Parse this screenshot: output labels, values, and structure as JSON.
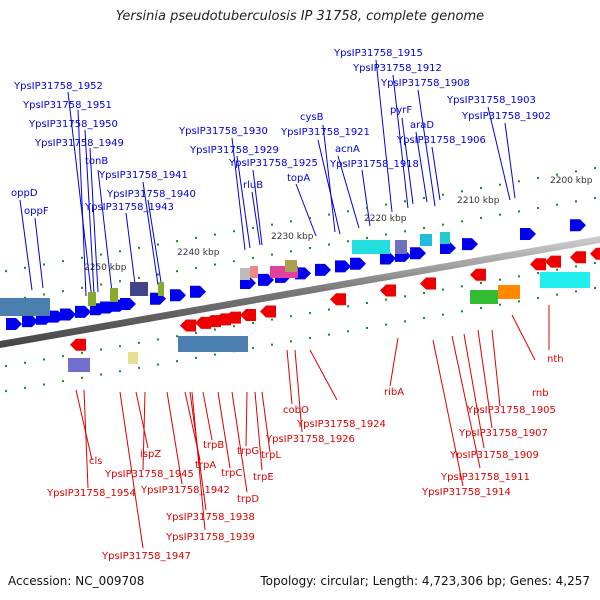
{
  "title": "Yersinia pseudotuberculosis IP 31758, complete genome",
  "footer": {
    "accession": "Accession: NC_009708",
    "summary": "Topology: circular; Length: 4,723,306 bp; Genes: 4,257"
  },
  "colors": {
    "forward_label": "#0000dd",
    "reverse_label": "#dd0000",
    "backbone": "#888888",
    "tick": "#1a8a1a"
  },
  "scale_labels": [
    {
      "text": "2250 kbp",
      "kbp": 2250
    },
    {
      "text": "2240 kbp",
      "kbp": 2240
    },
    {
      "text": "2230 kbp",
      "kbp": 2230
    },
    {
      "text": "2220 kbp",
      "kbp": 2220
    },
    {
      "text": "2210 kbp",
      "kbp": 2210
    },
    {
      "text": "2200 kbp",
      "kbp": 2200
    }
  ],
  "forward_labels": [
    {
      "text": "YpsIP31758_1952"
    },
    {
      "text": "YpsIP31758_1951"
    },
    {
      "text": "YpsIP31758_1950"
    },
    {
      "text": "YpsIP31758_1949"
    },
    {
      "text": "tonB"
    },
    {
      "text": "YpsIP31758_1941"
    },
    {
      "text": "YpsIP31758_1940"
    },
    {
      "text": "YpsIP31758_1943"
    },
    {
      "text": "oppD"
    },
    {
      "text": "oppF"
    },
    {
      "text": "YpsIP31758_1930"
    },
    {
      "text": "YpsIP31758_1929"
    },
    {
      "text": "YpsIP31758_1925"
    },
    {
      "text": "rluB"
    },
    {
      "text": "topA"
    },
    {
      "text": "cysB"
    },
    {
      "text": "YpsIP31758_1921"
    },
    {
      "text": "acnA"
    },
    {
      "text": "YpsIP31758_1918"
    },
    {
      "text": "YpsIP31758_1915"
    },
    {
      "text": "YpsIP31758_1912"
    },
    {
      "text": "YpsIP31758_1908"
    },
    {
      "text": "pyrF"
    },
    {
      "text": "araD"
    },
    {
      "text": "YpsIP31758_1906"
    },
    {
      "text": "YpsIP31758_1903"
    },
    {
      "text": "YpsIP31758_1902"
    }
  ],
  "reverse_labels": [
    {
      "text": "cls"
    },
    {
      "text": "YpsIP31758_1954"
    },
    {
      "text": "ispZ"
    },
    {
      "text": "YpsIP31758_1945"
    },
    {
      "text": "YpsIP31758_1947"
    },
    {
      "text": "YpsIP31758_1942"
    },
    {
      "text": "trpB"
    },
    {
      "text": "trpA"
    },
    {
      "text": "YpsIP31758_1938"
    },
    {
      "text": "YpsIP31758_1939"
    },
    {
      "text": "trpC"
    },
    {
      "text": "trpD"
    },
    {
      "text": "trpG"
    },
    {
      "text": "trpE"
    },
    {
      "text": "trpL"
    },
    {
      "text": "cobO"
    },
    {
      "text": "YpsIP31758_1926"
    },
    {
      "text": "YpsIP31758_1924"
    },
    {
      "text": "ribA"
    },
    {
      "text": "YpsIP31758_1914"
    },
    {
      "text": "YpsIP31758_1911"
    },
    {
      "text": "YpsIP31758_1909"
    },
    {
      "text": "YpsIP31758_1907"
    },
    {
      "text": "YpsIP31758_1905"
    },
    {
      "text": "rnb"
    },
    {
      "text": "nth"
    }
  ]
}
